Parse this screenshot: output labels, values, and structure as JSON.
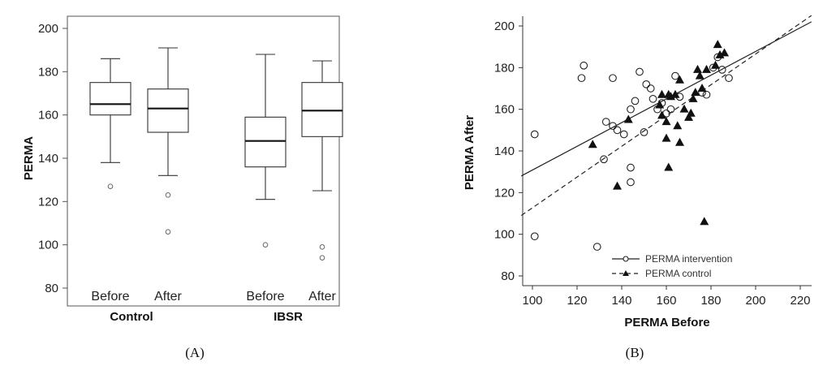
{
  "chart_data": [
    {
      "type": "box",
      "panel_label": "(A)",
      "ylabel": "PERMA",
      "ylim": [
        80,
        200
      ],
      "yticks": [
        80,
        100,
        120,
        140,
        160,
        180,
        200
      ],
      "groups": [
        {
          "name": "Control",
          "categories": [
            "Before",
            "After"
          ]
        },
        {
          "name": "IBSR",
          "categories": [
            "Before",
            "After"
          ]
        }
      ],
      "boxes": [
        {
          "group": "Control",
          "category": "Before",
          "whisker_low": 138,
          "q1": 160,
          "median": 165,
          "q3": 175,
          "whisker_high": 186,
          "outliers": [
            127
          ]
        },
        {
          "group": "Control",
          "category": "After",
          "whisker_low": 132,
          "q1": 152,
          "median": 163,
          "q3": 172,
          "whisker_high": 191,
          "outliers": [
            123,
            106
          ]
        },
        {
          "group": "IBSR",
          "category": "Before",
          "whisker_low": 121,
          "q1": 136,
          "median": 148,
          "q3": 159,
          "whisker_high": 188,
          "outliers": [
            100
          ]
        },
        {
          "group": "IBSR",
          "category": "After",
          "whisker_low": 125,
          "q1": 150,
          "median": 162,
          "q3": 175,
          "whisker_high": 185,
          "outliers": [
            99,
            94
          ]
        }
      ]
    },
    {
      "type": "scatter",
      "panel_label": "(B)",
      "xlabel": "PERMA Before",
      "ylabel": "PERMA After",
      "xlim": [
        95,
        225
      ],
      "ylim": [
        78,
        205
      ],
      "xticks": [
        100,
        120,
        140,
        160,
        180,
        200,
        220
      ],
      "yticks": [
        80,
        100,
        120,
        140,
        160,
        180,
        200
      ],
      "legend_position": "bottom-center",
      "series": [
        {
          "name": "PERMA intervention",
          "marker": "open-circle",
          "line_style": "solid",
          "fit_line": {
            "x": [
              95,
              225
            ],
            "y": [
              128,
              202
            ]
          },
          "points": [
            {
              "x": 101,
              "y": 148
            },
            {
              "x": 101,
              "y": 99
            },
            {
              "x": 122,
              "y": 175
            },
            {
              "x": 123,
              "y": 181
            },
            {
              "x": 129,
              "y": 94
            },
            {
              "x": 132,
              "y": 136
            },
            {
              "x": 133,
              "y": 154
            },
            {
              "x": 136,
              "y": 175
            },
            {
              "x": 136,
              "y": 152
            },
            {
              "x": 138,
              "y": 150
            },
            {
              "x": 141,
              "y": 148
            },
            {
              "x": 144,
              "y": 160
            },
            {
              "x": 144,
              "y": 132
            },
            {
              "x": 144,
              "y": 125
            },
            {
              "x": 146,
              "y": 164
            },
            {
              "x": 148,
              "y": 178
            },
            {
              "x": 150,
              "y": 149
            },
            {
              "x": 151,
              "y": 172
            },
            {
              "x": 153,
              "y": 170
            },
            {
              "x": 154,
              "y": 165
            },
            {
              "x": 156,
              "y": 160
            },
            {
              "x": 158,
              "y": 163
            },
            {
              "x": 160,
              "y": 158
            },
            {
              "x": 162,
              "y": 160
            },
            {
              "x": 164,
              "y": 176
            },
            {
              "x": 166,
              "y": 166
            },
            {
              "x": 176,
              "y": 168
            },
            {
              "x": 178,
              "y": 167
            },
            {
              "x": 181,
              "y": 180
            },
            {
              "x": 183,
              "y": 185
            },
            {
              "x": 185,
              "y": 179
            },
            {
              "x": 188,
              "y": 175
            }
          ]
        },
        {
          "name": "PERMA control",
          "marker": "filled-triangle",
          "line_style": "dashed",
          "fit_line": {
            "x": [
              95,
              225
            ],
            "y": [
              109,
              205
            ]
          },
          "points": [
            {
              "x": 127,
              "y": 143
            },
            {
              "x": 138,
              "y": 123
            },
            {
              "x": 143,
              "y": 155
            },
            {
              "x": 157,
              "y": 162
            },
            {
              "x": 158,
              "y": 157
            },
            {
              "x": 158,
              "y": 167
            },
            {
              "x": 160,
              "y": 154
            },
            {
              "x": 160,
              "y": 146
            },
            {
              "x": 161,
              "y": 132
            },
            {
              "x": 161,
              "y": 167
            },
            {
              "x": 162,
              "y": 166
            },
            {
              "x": 164,
              "y": 167
            },
            {
              "x": 165,
              "y": 152
            },
            {
              "x": 166,
              "y": 174
            },
            {
              "x": 166,
              "y": 144
            },
            {
              "x": 168,
              "y": 160
            },
            {
              "x": 170,
              "y": 156
            },
            {
              "x": 171,
              "y": 158
            },
            {
              "x": 172,
              "y": 165
            },
            {
              "x": 173,
              "y": 168
            },
            {
              "x": 174,
              "y": 179
            },
            {
              "x": 175,
              "y": 176
            },
            {
              "x": 176,
              "y": 170
            },
            {
              "x": 177,
              "y": 106
            },
            {
              "x": 178,
              "y": 179
            },
            {
              "x": 182,
              "y": 181
            },
            {
              "x": 183,
              "y": 191
            },
            {
              "x": 184,
              "y": 186
            },
            {
              "x": 186,
              "y": 187
            }
          ]
        }
      ]
    }
  ]
}
